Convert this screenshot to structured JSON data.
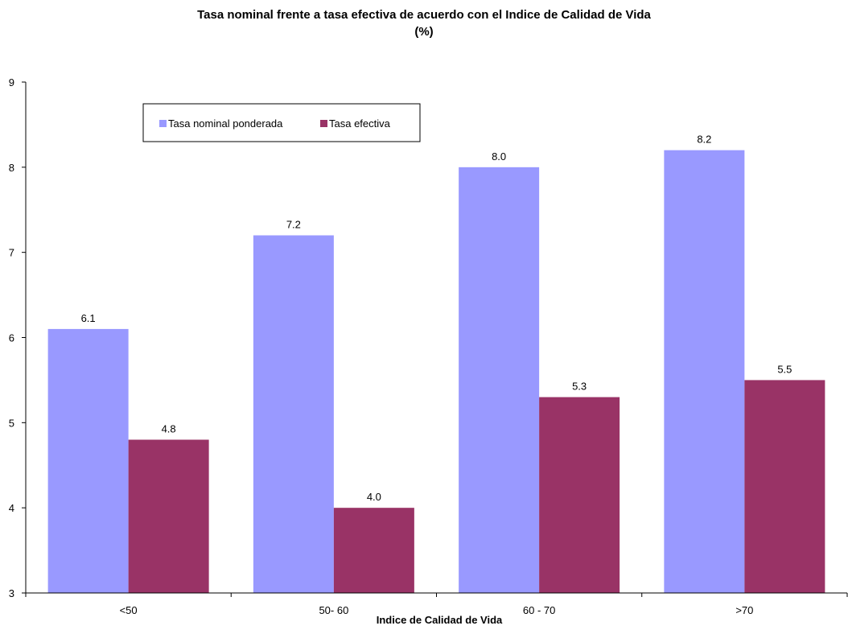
{
  "chart_data": {
    "type": "bar",
    "title": "Tasa nominal frente a tasa efectiva de acuerdo con el Indice de Calidad de Vida",
    "subtitle": "(%)",
    "xlabel": "Indice de Calidad de Vida",
    "ylabel": "",
    "categories": [
      "<50",
      "50- 60",
      "60 - 70",
      ">70"
    ],
    "series": [
      {
        "name": "Tasa nominal ponderada",
        "color": "#9999ff",
        "values": [
          6.1,
          7.2,
          8.0,
          8.2
        ],
        "labels": [
          "6.1",
          "7.2",
          "8.0",
          "8.2"
        ]
      },
      {
        "name": "Tasa efectiva",
        "color": "#993366",
        "values": [
          4.8,
          4.0,
          5.3,
          5.5
        ],
        "labels": [
          "4.8",
          "4.0",
          "5.3",
          "5.5"
        ]
      }
    ],
    "ylim": [
      3,
      9
    ],
    "yticks": [
      "3",
      "4",
      "5",
      "6",
      "7",
      "8",
      "9"
    ],
    "grid": false,
    "legend_position": "top-left"
  }
}
